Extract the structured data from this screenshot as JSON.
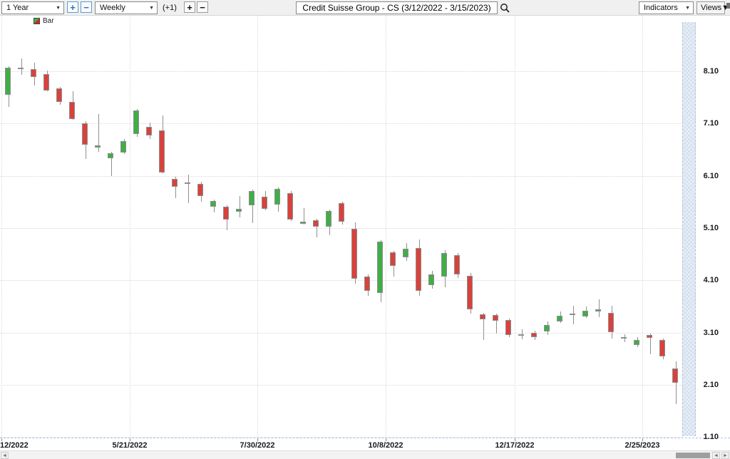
{
  "toolbar": {
    "range_value": "1 Year",
    "zoom_in": "+",
    "zoom_out": "−",
    "period_value": "Weekly",
    "bar_offset": "(+1)",
    "bars_plus": "+",
    "bars_minus": "−",
    "title": "Credit Suisse Group - CS (3/12/2022 - 3/15/2023)",
    "indicators": "Indicators",
    "views": "Views",
    "dropdown_arrow": "▼"
  },
  "legend": {
    "series_label": "Bar"
  },
  "colors": {
    "up": "#3fae46",
    "down": "#d8423c",
    "neutral": "#6f6f6f",
    "wick": "#8f8f8f",
    "grid": "#d9d9d9",
    "axis_line": "#a9c7e8",
    "accent_blue": "#2e6fd0"
  },
  "chart_data": {
    "type": "candlestick",
    "title": "Credit Suisse Group - CS",
    "company": "Credit Suisse Group",
    "symbol": "CS",
    "period": "Weekly",
    "date_range": "3/12/2022 - 3/15/2023",
    "grid": true,
    "y_axis": {
      "min": 1.1,
      "max": 8.35,
      "ticks": [
        8.1,
        7.1,
        6.1,
        5.1,
        4.1,
        3.1,
        2.1,
        1.1
      ]
    },
    "x_axis": {
      "labels": [
        "12/2022",
        "5/21/2022",
        "7/30/2022",
        "10/8/2022",
        "12/17/2022",
        "2/25/2023"
      ]
    },
    "candles": [
      {
        "d": "2022-03-12",
        "o": 7.6,
        "h": 8.08,
        "l": 7.45,
        "c": 8.03
      },
      {
        "d": "2022-03-19",
        "o": 7.65,
        "h": 8.2,
        "l": 7.42,
        "c": 8.17
      },
      {
        "d": "2022-03-26",
        "o": 8.15,
        "h": 8.35,
        "l": 8.03,
        "c": 8.17,
        "n": 1
      },
      {
        "d": "2022-04-02",
        "o": 8.14,
        "h": 8.26,
        "l": 7.83,
        "c": 7.99
      },
      {
        "d": "2022-04-09",
        "o": 8.05,
        "h": 8.11,
        "l": 7.72,
        "c": 7.73
      },
      {
        "d": "2022-04-16",
        "o": 7.77,
        "h": 7.8,
        "l": 7.46,
        "c": 7.51
      },
      {
        "d": "2022-04-23",
        "o": 7.51,
        "h": 7.72,
        "l": 7.17,
        "c": 7.19
      },
      {
        "d": "2022-04-30",
        "o": 7.1,
        "h": 7.15,
        "l": 6.42,
        "c": 6.7
      },
      {
        "d": "2022-05-07",
        "o": 6.64,
        "h": 7.28,
        "l": 6.56,
        "c": 6.68
      },
      {
        "d": "2022-05-14",
        "o": 6.44,
        "h": 6.56,
        "l": 6.1,
        "c": 6.53
      },
      {
        "d": "2022-05-21",
        "o": 6.55,
        "h": 6.8,
        "l": 6.52,
        "c": 6.76
      },
      {
        "d": "2022-05-28",
        "o": 6.9,
        "h": 7.38,
        "l": 6.85,
        "c": 7.35
      },
      {
        "d": "2022-06-04",
        "o": 7.04,
        "h": 7.12,
        "l": 6.8,
        "c": 6.87
      },
      {
        "d": "2022-06-11",
        "o": 6.97,
        "h": 7.25,
        "l": 6.15,
        "c": 6.16
      },
      {
        "d": "2022-06-18",
        "o": 6.04,
        "h": 6.08,
        "l": 5.67,
        "c": 5.89
      },
      {
        "d": "2022-06-25",
        "o": 5.97,
        "h": 6.12,
        "l": 5.58,
        "c": 5.95
      },
      {
        "d": "2022-07-02",
        "o": 5.95,
        "h": 5.99,
        "l": 5.6,
        "c": 5.71
      },
      {
        "d": "2022-07-09",
        "o": 5.51,
        "h": 5.65,
        "l": 5.4,
        "c": 5.62
      },
      {
        "d": "2022-07-16",
        "o": 5.51,
        "h": 5.54,
        "l": 5.06,
        "c": 5.26
      },
      {
        "d": "2022-07-23",
        "o": 5.41,
        "h": 5.71,
        "l": 5.3,
        "c": 5.47
      },
      {
        "d": "2022-07-30",
        "o": 5.54,
        "h": 5.84,
        "l": 5.2,
        "c": 5.81
      },
      {
        "d": "2022-08-06",
        "o": 5.7,
        "h": 5.81,
        "l": 5.44,
        "c": 5.47
      },
      {
        "d": "2022-08-13",
        "o": 5.55,
        "h": 5.88,
        "l": 5.41,
        "c": 5.85
      },
      {
        "d": "2022-08-20",
        "o": 5.77,
        "h": 5.81,
        "l": 5.24,
        "c": 5.26
      },
      {
        "d": "2022-08-27",
        "o": 5.18,
        "h": 5.48,
        "l": 5.17,
        "c": 5.22
      },
      {
        "d": "2022-09-03",
        "o": 5.25,
        "h": 5.28,
        "l": 4.92,
        "c": 5.13
      },
      {
        "d": "2022-09-10",
        "o": 5.13,
        "h": 5.46,
        "l": 4.96,
        "c": 5.43
      },
      {
        "d": "2022-09-17",
        "o": 5.58,
        "h": 5.6,
        "l": 5.17,
        "c": 5.22
      },
      {
        "d": "2022-09-24",
        "o": 5.09,
        "h": 5.21,
        "l": 4.04,
        "c": 4.13
      },
      {
        "d": "2022-10-01",
        "o": 4.17,
        "h": 4.21,
        "l": 3.8,
        "c": 3.9
      },
      {
        "d": "2022-10-08",
        "o": 3.86,
        "h": 4.87,
        "l": 3.68,
        "c": 4.84
      },
      {
        "d": "2022-10-15",
        "o": 4.64,
        "h": 4.66,
        "l": 4.17,
        "c": 4.38
      },
      {
        "d": "2022-10-22",
        "o": 4.54,
        "h": 4.81,
        "l": 4.47,
        "c": 4.71
      },
      {
        "d": "2022-10-29",
        "o": 4.72,
        "h": 4.88,
        "l": 3.8,
        "c": 3.9
      },
      {
        "d": "2022-11-05",
        "o": 4.01,
        "h": 4.28,
        "l": 3.94,
        "c": 4.21
      },
      {
        "d": "2022-11-12",
        "o": 4.17,
        "h": 4.68,
        "l": 3.97,
        "c": 4.62
      },
      {
        "d": "2022-11-19",
        "o": 4.58,
        "h": 4.62,
        "l": 4.14,
        "c": 4.21
      },
      {
        "d": "2022-11-26",
        "o": 4.19,
        "h": 4.24,
        "l": 3.46,
        "c": 3.55
      },
      {
        "d": "2022-12-03",
        "o": 3.45,
        "h": 3.48,
        "l": 2.96,
        "c": 3.35
      },
      {
        "d": "2022-12-10",
        "o": 3.44,
        "h": 3.46,
        "l": 3.08,
        "c": 3.33
      },
      {
        "d": "2022-12-17",
        "o": 3.34,
        "h": 3.37,
        "l": 3.01,
        "c": 3.05
      },
      {
        "d": "2022-12-24",
        "o": 3.07,
        "h": 3.16,
        "l": 2.97,
        "c": 3.07,
        "n": 1
      },
      {
        "d": "2022-12-31",
        "o": 3.1,
        "h": 3.14,
        "l": 2.96,
        "c": 3.01
      },
      {
        "d": "2023-01-07",
        "o": 3.12,
        "h": 3.31,
        "l": 3.05,
        "c": 3.24
      },
      {
        "d": "2023-01-14",
        "o": 3.31,
        "h": 3.5,
        "l": 3.29,
        "c": 3.42
      },
      {
        "d": "2023-01-21",
        "o": 3.46,
        "h": 3.61,
        "l": 3.26,
        "c": 3.44
      },
      {
        "d": "2023-01-28",
        "o": 3.41,
        "h": 3.6,
        "l": 3.38,
        "c": 3.52
      },
      {
        "d": "2023-02-04",
        "o": 3.51,
        "h": 3.74,
        "l": 3.4,
        "c": 3.55
      },
      {
        "d": "2023-02-11",
        "o": 3.48,
        "h": 3.61,
        "l": 2.99,
        "c": 3.11
      },
      {
        "d": "2023-02-18",
        "o": 3.01,
        "h": 3.07,
        "l": 2.92,
        "c": 2.98
      },
      {
        "d": "2023-02-25",
        "o": 2.86,
        "h": 3.01,
        "l": 2.82,
        "c": 2.96
      },
      {
        "d": "2023-03-04",
        "o": 3.05,
        "h": 3.08,
        "l": 2.69,
        "c": 3.0
      },
      {
        "d": "2023-03-11",
        "o": 2.96,
        "h": 2.99,
        "l": 2.59,
        "c": 2.65
      },
      {
        "d": "2023-03-15",
        "o": 2.41,
        "h": 2.55,
        "l": 1.73,
        "c": 2.14
      }
    ]
  },
  "scrollbar": {
    "left_arrow": "◄",
    "scroll_left": "◄",
    "scroll_right": "►"
  }
}
